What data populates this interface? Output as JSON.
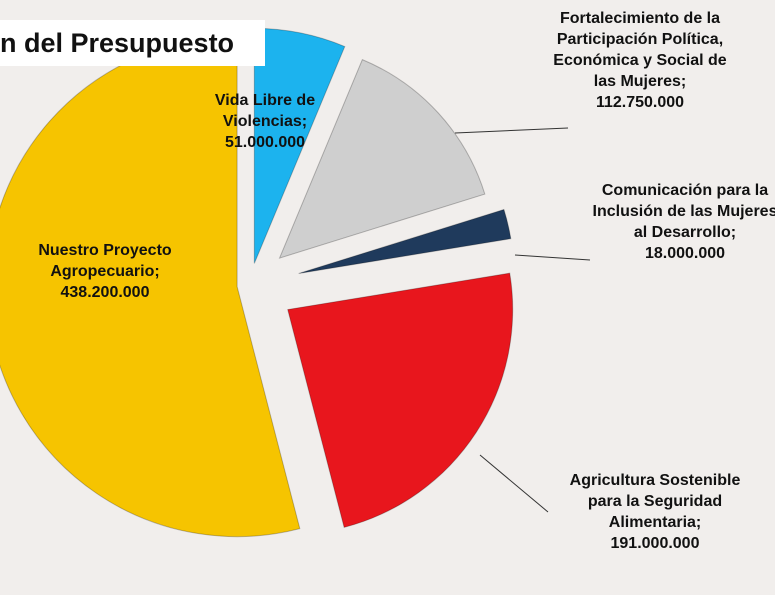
{
  "chart_data": {
    "type": "pie",
    "title": "n del Presupuesto",
    "categories": [
      "Vida Libre de Violencias",
      "Fortalecimiento de la Participación Política, Económica y Social de las Mujeres",
      "Comunicación para la Inclusión de las Mujeres al Desarrollo",
      "Agricultura Sostenible para la Seguridad Alimentaria",
      "Nuestro Proyecto Agropecuario"
    ],
    "values": [
      51000000,
      112750000,
      18000000,
      191000000,
      438200000
    ],
    "value_labels": [
      "51.000.000",
      "112.750.000",
      "18.000.000",
      "191.000.000",
      "438.200.000"
    ],
    "label_separator": ";",
    "colors": [
      "#1cb3ee",
      "#cfcfcf",
      "#1f3a5c",
      "#e8161d",
      "#f6c400"
    ]
  }
}
